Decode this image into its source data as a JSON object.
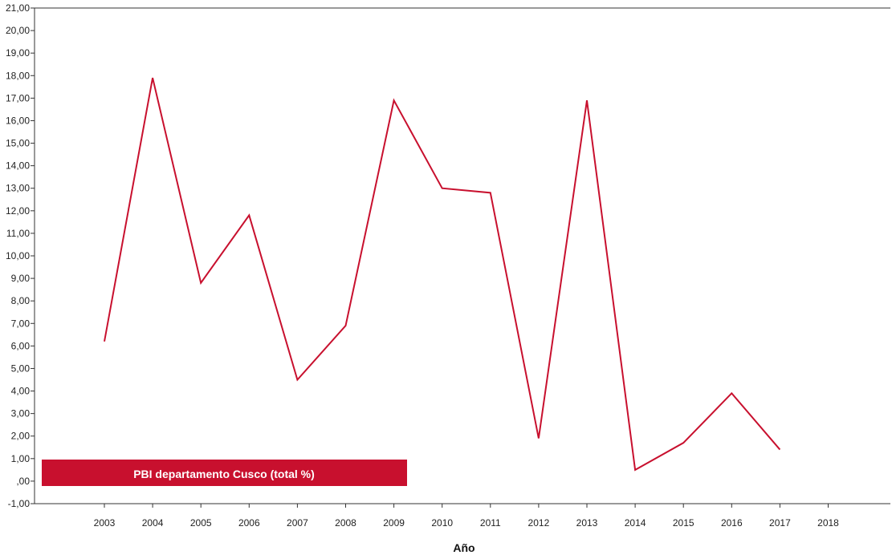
{
  "chart_data": {
    "type": "line",
    "xlabel": "Año",
    "ylabel": "",
    "categories": [
      "2003",
      "2004",
      "2005",
      "2006",
      "2007",
      "2008",
      "2009",
      "2010",
      "2011",
      "2012",
      "2013",
      "2014",
      "2015",
      "2016",
      "2017",
      "2018"
    ],
    "series": [
      {
        "name": "PBI  departamento Cusco (total %)",
        "color": "#c8102e",
        "values": [
          6.2,
          17.9,
          8.8,
          11.8,
          4.5,
          6.9,
          16.9,
          13.0,
          12.8,
          1.9,
          16.9,
          0.5,
          1.7,
          3.9,
          1.4,
          null
        ]
      }
    ],
    "ylim": [
      -1,
      21
    ],
    "yticks": [
      "-1,00",
      ",00",
      "1,00",
      "2,00",
      "3,00",
      "4,00",
      "5,00",
      "6,00",
      "7,00",
      "8,00",
      "9,00",
      "10,00",
      "11,00",
      "12,00",
      "13,00",
      "14,00",
      "15,00",
      "16,00",
      "17,00",
      "18,00",
      "19,00",
      "20,00",
      "21,00"
    ],
    "legend_position": "bottom-left",
    "grid": false
  }
}
